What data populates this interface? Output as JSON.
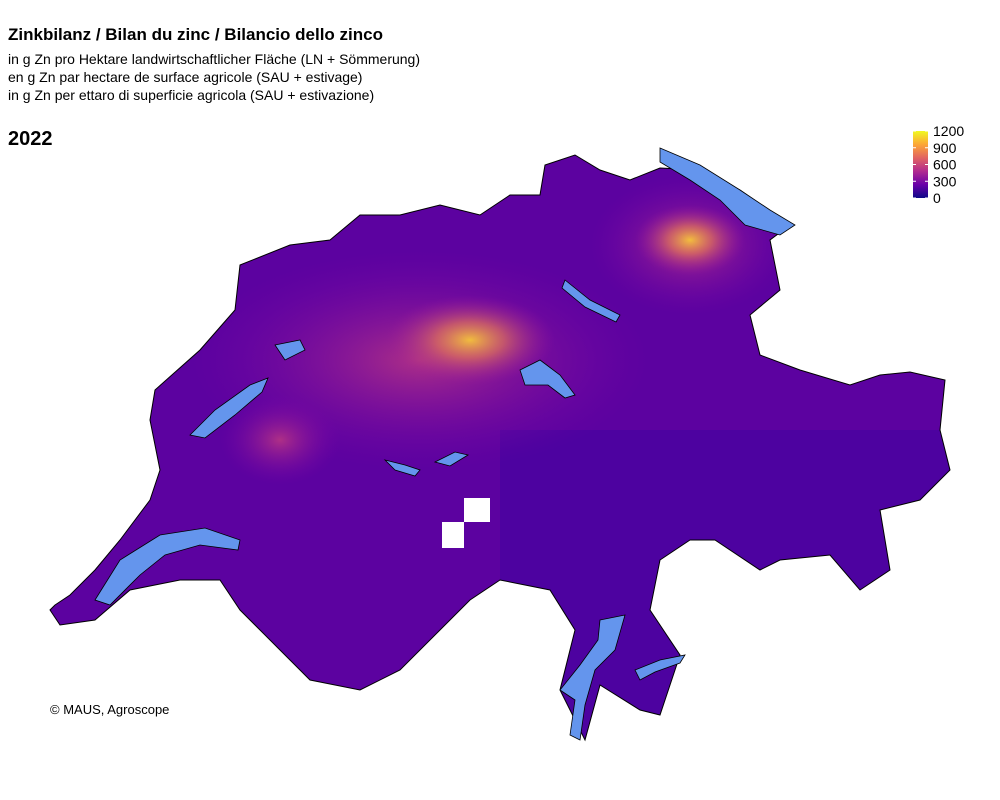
{
  "header": {
    "title": "Zinkbilanz / Bilan du zinc / Bilancio dello zinco",
    "subtitles": [
      "in g Zn pro Hektare landwirtschaftlicher Fläche (LN + Sömmerung)",
      "en g Zn par hectare de surface agricole (SAU + estivage)",
      "in g Zn per ettaro di superficie agricola (SAU + estivazione)"
    ]
  },
  "year": "2022",
  "legend": {
    "range": [
      0,
      1200
    ],
    "ticks": [
      0,
      300,
      600,
      900,
      1200
    ],
    "colors": [
      "#0d0887",
      "#6a00a8",
      "#b12a90",
      "#e16462",
      "#fca636",
      "#f0f921"
    ]
  },
  "credit": "© MAUS, Agroscope"
}
